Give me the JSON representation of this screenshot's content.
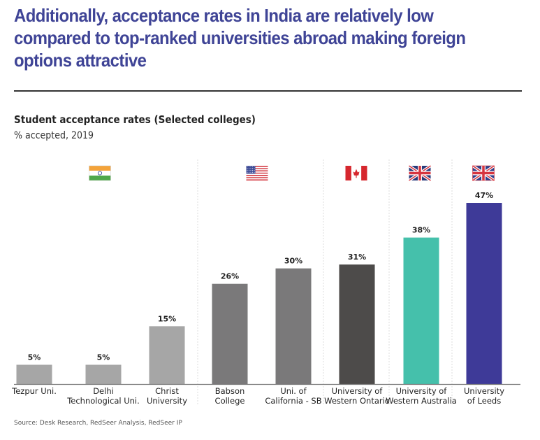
{
  "title": "Additionally, acceptance rates in India are relatively low compared to top-ranked universities abroad making foreign options attractive",
  "source": "Source: Desk Research, RedSeer Analysis, RedSeer IP",
  "chart_data": {
    "type": "bar",
    "title": "Student acceptance rates (Selected colleges)",
    "subtitle": "% accepted, 2019",
    "xlabel": "",
    "ylabel": "",
    "ylim": [
      0,
      47
    ],
    "grid": false,
    "categories": [
      "Tezpur Uni.",
      "Delhi Technological Uni.",
      "Christ University",
      "Babson College",
      "Uni. of California - SB",
      "University of Western Ontario",
      "University of Western Australia",
      "University of Leeds"
    ],
    "category_lines": [
      [
        "Tezpur Uni."
      ],
      [
        "Delhi",
        "Technological Uni."
      ],
      [
        "Christ",
        "University"
      ],
      [
        "Babson",
        "College"
      ],
      [
        "Uni. of",
        "California - SB"
      ],
      [
        "University of",
        "Western Ontario"
      ],
      [
        "University of",
        "Western Australia"
      ],
      [
        "University",
        "of Leeds"
      ]
    ],
    "values": [
      5,
      5,
      15,
      26,
      30,
      31,
      38,
      47
    ],
    "value_labels": [
      "5%",
      "5%",
      "15%",
      "26%",
      "30%",
      "31%",
      "38%",
      "47%"
    ],
    "colors": [
      "#a6a6a6",
      "#a6a6a6",
      "#a6a6a6",
      "#7a797a",
      "#7a797a",
      "#4d4b4a",
      "#45c0ab",
      "#3e3a98"
    ],
    "groups": [
      {
        "country": "India",
        "flag": "india-flag-icon",
        "members": [
          0,
          1,
          2
        ]
      },
      {
        "country": "USA",
        "flag": "usa-flag-icon",
        "members": [
          3,
          4
        ]
      },
      {
        "country": "Canada",
        "flag": "canada-flag-icon",
        "members": [
          5
        ]
      },
      {
        "country": "Australia",
        "flag": "australia-flag-icon",
        "members": [
          6
        ]
      },
      {
        "country": "United Kingdom",
        "flag": "uk-flag-icon",
        "members": [
          7
        ]
      }
    ]
  }
}
